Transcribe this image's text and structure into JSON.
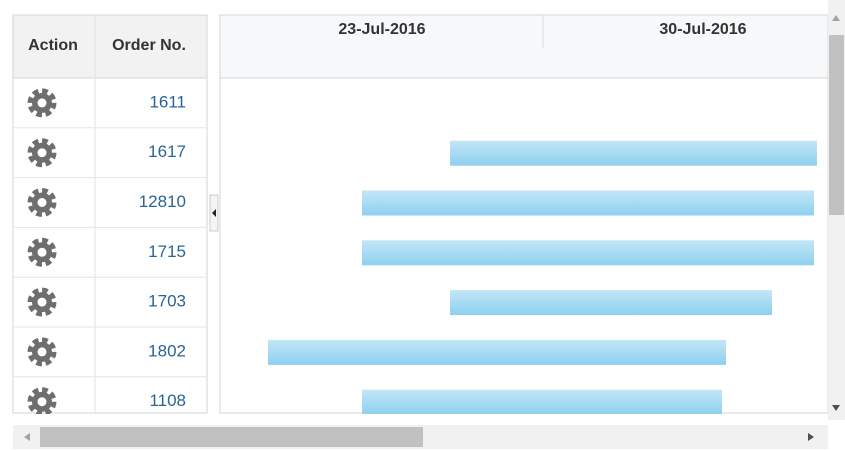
{
  "table": {
    "columns": [
      "Action",
      "Order No."
    ],
    "rows": [
      "1611",
      "1617",
      "12810",
      "1715",
      "1703",
      "1802",
      "1108"
    ]
  },
  "timeline": {
    "dates": [
      "23-Jul-2016",
      "30-Jul-2016"
    ]
  }
}
